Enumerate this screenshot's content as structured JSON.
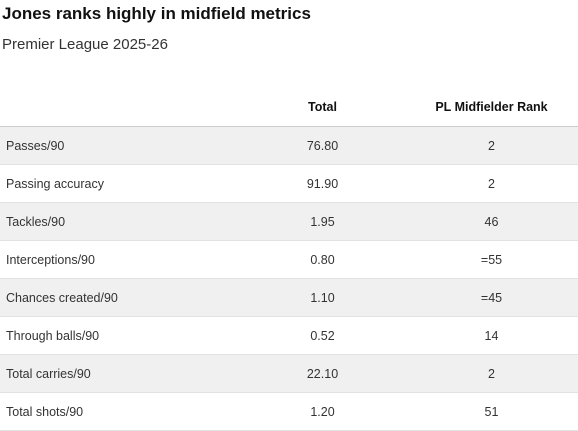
{
  "header": {
    "title": "Jones ranks highly in midfield metrics",
    "subtitle": "Premier League 2025-26"
  },
  "table": {
    "columns": [
      "Total",
      "PL Midfielder Rank"
    ],
    "rows": [
      [
        "Passes/90",
        "76.80",
        "2"
      ],
      [
        "Passing accuracy",
        "91.90",
        "2"
      ],
      [
        "Tackles/90",
        "1.95",
        "46"
      ],
      [
        "Interceptions/90",
        "0.80",
        "=55"
      ],
      [
        "Chances created/90",
        "1.10",
        "=45"
      ],
      [
        "Through balls/90",
        "0.52",
        "14"
      ],
      [
        "Total carries/90",
        "22.10",
        "2"
      ],
      [
        "Total shots/90",
        "1.20",
        "51"
      ]
    ]
  }
}
